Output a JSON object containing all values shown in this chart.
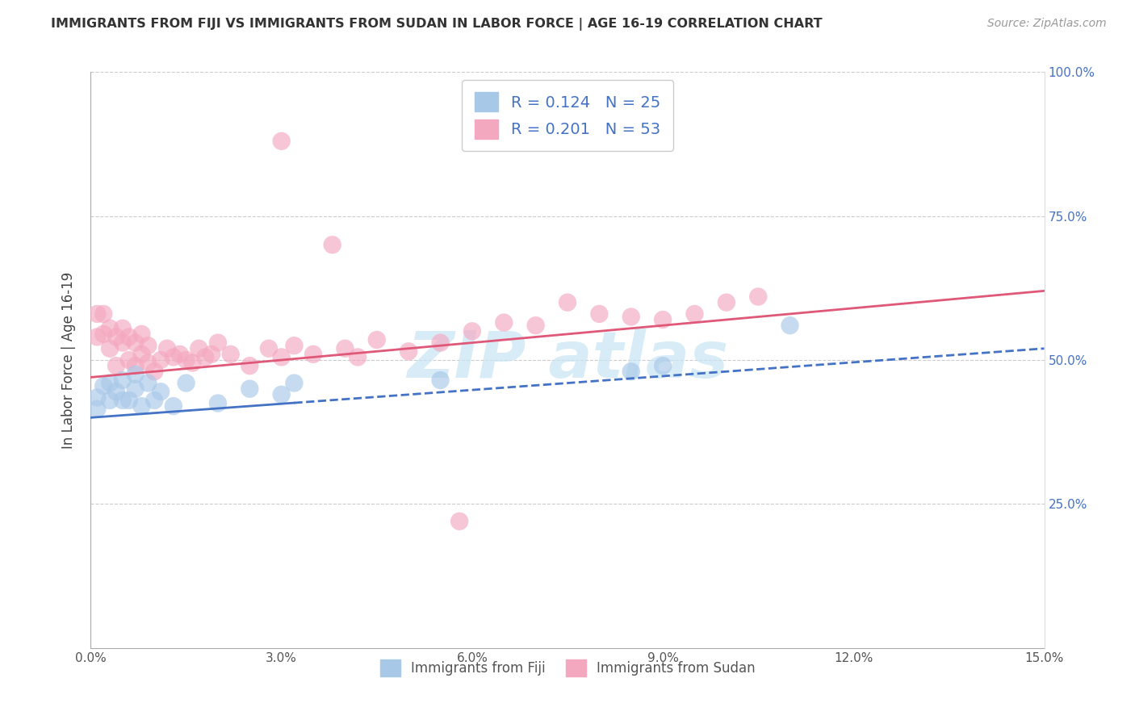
{
  "title": "IMMIGRANTS FROM FIJI VS IMMIGRANTS FROM SUDAN IN LABOR FORCE | AGE 16-19 CORRELATION CHART",
  "source": "Source: ZipAtlas.com",
  "ylabel": "In Labor Force | Age 16-19",
  "fiji_label": "Immigrants from Fiji",
  "sudan_label": "Immigrants from Sudan",
  "fiji_R": 0.124,
  "fiji_N": 25,
  "sudan_R": 0.201,
  "sudan_N": 53,
  "fiji_color": "#a8c8e8",
  "sudan_color": "#f4a8c0",
  "fiji_line_color": "#4472c4",
  "sudan_line_color": "#e05878",
  "xlim": [
    0.0,
    0.15
  ],
  "ylim": [
    0.0,
    1.0
  ],
  "xtick_vals": [
    0.0,
    0.03,
    0.06,
    0.09,
    0.12,
    0.15
  ],
  "xtick_labels": [
    "0.0%",
    "3.0%",
    "6.0%",
    "9.0%",
    "12.0%",
    "15.0%"
  ],
  "ytick_right_vals": [
    0.25,
    0.5,
    0.75,
    1.0
  ],
  "ytick_right_labels": [
    "25.0%",
    "50.0%",
    "75.0%",
    "100.0%"
  ],
  "grid_vals": [
    0.25,
    0.5,
    0.75,
    1.0
  ],
  "fiji_x": [
    0.001,
    0.001,
    0.002,
    0.003,
    0.003,
    0.004,
    0.005,
    0.005,
    0.006,
    0.007,
    0.007,
    0.008,
    0.009,
    0.01,
    0.011,
    0.013,
    0.015,
    0.02,
    0.025,
    0.03,
    0.032,
    0.055,
    0.085,
    0.09,
    0.11
  ],
  "fiji_y": [
    0.415,
    0.435,
    0.455,
    0.43,
    0.46,
    0.445,
    0.465,
    0.43,
    0.43,
    0.45,
    0.475,
    0.42,
    0.46,
    0.43,
    0.445,
    0.42,
    0.46,
    0.425,
    0.45,
    0.44,
    0.46,
    0.465,
    0.48,
    0.49,
    0.56
  ],
  "sudan_x": [
    0.001,
    0.001,
    0.002,
    0.002,
    0.003,
    0.003,
    0.004,
    0.004,
    0.005,
    0.005,
    0.006,
    0.006,
    0.007,
    0.007,
    0.008,
    0.008,
    0.009,
    0.009,
    0.01,
    0.011,
    0.012,
    0.013,
    0.014,
    0.015,
    0.016,
    0.017,
    0.018,
    0.019,
    0.02,
    0.022,
    0.025,
    0.028,
    0.03,
    0.032,
    0.035,
    0.04,
    0.042,
    0.045,
    0.05,
    0.055,
    0.06,
    0.065,
    0.07,
    0.075,
    0.08,
    0.085,
    0.09,
    0.095,
    0.1,
    0.105,
    0.03,
    0.038,
    0.058
  ],
  "sudan_y": [
    0.58,
    0.54,
    0.58,
    0.545,
    0.555,
    0.52,
    0.54,
    0.49,
    0.53,
    0.555,
    0.5,
    0.54,
    0.49,
    0.53,
    0.51,
    0.545,
    0.495,
    0.525,
    0.48,
    0.5,
    0.52,
    0.505,
    0.51,
    0.5,
    0.495,
    0.52,
    0.505,
    0.51,
    0.53,
    0.51,
    0.49,
    0.52,
    0.505,
    0.525,
    0.51,
    0.52,
    0.505,
    0.535,
    0.515,
    0.53,
    0.55,
    0.565,
    0.56,
    0.6,
    0.58,
    0.575,
    0.57,
    0.58,
    0.6,
    0.61,
    0.88,
    0.7,
    0.22
  ],
  "watermark_text": "ZIP atlas",
  "watermark_color": "#c8e4f4"
}
